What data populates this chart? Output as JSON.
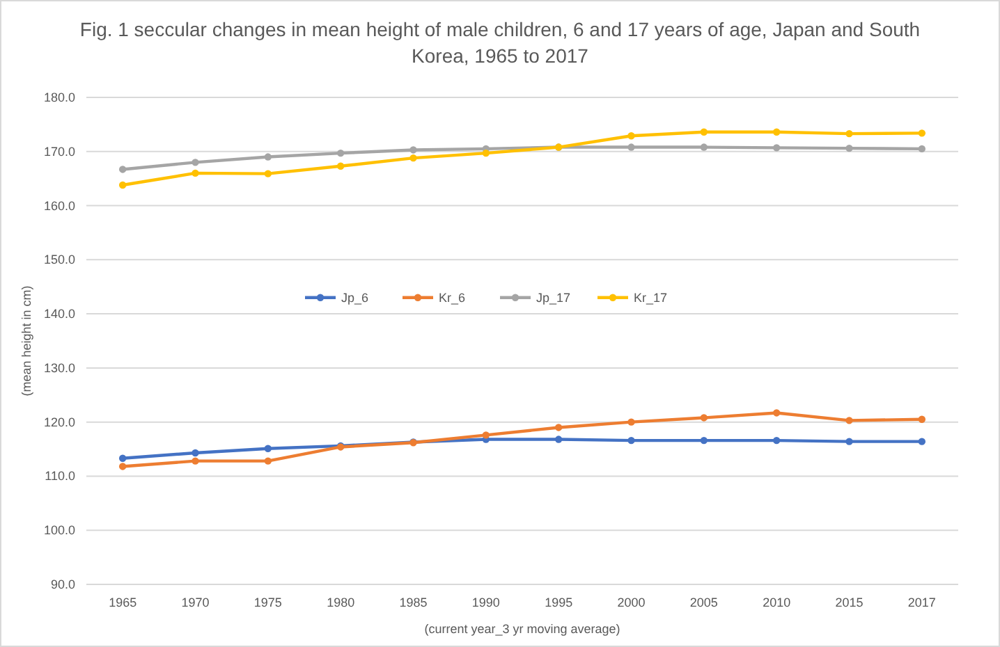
{
  "chart_data": {
    "type": "line",
    "title": "Fig. 1 seccular changes in mean height of male children, 6 and 17 years of age, Japan and South Korea, 1965 to 2017",
    "xlabel": "(current year_3 yr moving average)",
    "ylabel": "(mean height in cm)",
    "categories": [
      "1965",
      "1970",
      "1975",
      "1980",
      "1985",
      "1990",
      "1995",
      "2000",
      "2005",
      "2010",
      "2015",
      "2017"
    ],
    "series": [
      {
        "name": "Jp_6",
        "color": "#4472c4",
        "values": [
          113.3,
          114.3,
          115.1,
          115.6,
          116.3,
          116.8,
          116.8,
          116.6,
          116.6,
          116.6,
          116.4,
          116.4
        ]
      },
      {
        "name": "Kr_6",
        "color": "#ed7d31",
        "values": [
          111.8,
          112.8,
          112.8,
          115.4,
          116.2,
          117.6,
          119.0,
          120.0,
          120.8,
          121.7,
          120.3,
          120.5
        ]
      },
      {
        "name": "Jp_17",
        "color": "#a5a5a5",
        "values": [
          166.7,
          168.0,
          169.0,
          169.7,
          170.3,
          170.5,
          170.8,
          170.8,
          170.8,
          170.7,
          170.6,
          170.5
        ]
      },
      {
        "name": "Kr_17",
        "color": "#ffc000",
        "values": [
          163.8,
          166.0,
          165.9,
          167.3,
          168.8,
          169.7,
          170.8,
          172.9,
          173.6,
          173.6,
          173.3,
          173.4
        ]
      }
    ],
    "ylim": [
      90,
      180
    ],
    "yticks": [
      {
        "value": 90,
        "label": "90.0"
      },
      {
        "value": 100,
        "label": "100.0"
      },
      {
        "value": 110,
        "label": "110.0"
      },
      {
        "value": 120,
        "label": "120.0"
      },
      {
        "value": 130,
        "label": "130.0"
      },
      {
        "value": 140,
        "label": "140.0"
      },
      {
        "value": 150,
        "label": "150.0"
      },
      {
        "value": 160,
        "label": "160.0"
      },
      {
        "value": 170,
        "label": "170.0"
      },
      {
        "value": 180,
        "label": "180.0"
      }
    ],
    "grid": "y",
    "legend": "center",
    "marker": "circle",
    "line_style": "solid"
  }
}
